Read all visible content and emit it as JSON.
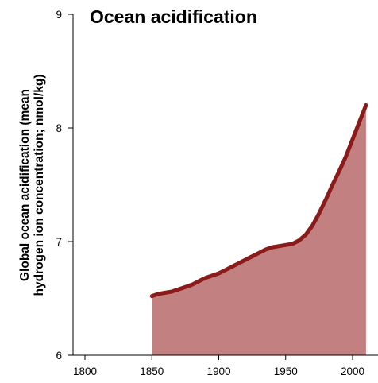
{
  "chart_data": {
    "type": "area",
    "title": "Ocean acidification",
    "xlabel": "",
    "ylabel_lines": [
      "Global ocean acidification (mean",
      "hydrogen ion concentration; nmol/kg)"
    ],
    "xlim": [
      1785,
      2010
    ],
    "ylim": [
      6,
      9
    ],
    "xticks": [
      1800,
      1850,
      1900,
      1950,
      2000
    ],
    "xtick_labels": [
      "1800",
      "1850",
      "1900",
      "1950",
      "2000"
    ],
    "yticks": [
      6,
      7,
      8,
      9
    ],
    "ytick_labels": [
      "6",
      "7",
      "8",
      "9"
    ],
    "grid": false,
    "colors": {
      "line": "#8b1a1a",
      "fill": "#c28080"
    },
    "series": [
      {
        "x": [
          1850,
          1855,
          1860,
          1865,
          1870,
          1875,
          1880,
          1885,
          1890,
          1895,
          1900,
          1905,
          1910,
          1915,
          1920,
          1925,
          1930,
          1935,
          1940,
          1945,
          1950,
          1955,
          1960,
          1965,
          1970,
          1975,
          1980,
          1985,
          1990,
          1995,
          2000,
          2005,
          2010
        ],
        "y": [
          6.52,
          6.54,
          6.55,
          6.56,
          6.58,
          6.6,
          6.62,
          6.65,
          6.68,
          6.7,
          6.72,
          6.75,
          6.78,
          6.81,
          6.84,
          6.87,
          6.9,
          6.93,
          6.95,
          6.96,
          6.97,
          6.98,
          7.01,
          7.06,
          7.14,
          7.25,
          7.37,
          7.5,
          7.62,
          7.75,
          7.9,
          8.05,
          8.2
        ]
      }
    ]
  }
}
